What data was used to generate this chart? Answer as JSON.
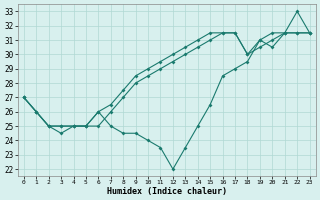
{
  "line1_x": [
    0,
    1,
    2,
    3,
    4,
    5,
    6,
    7,
    8,
    9,
    10,
    11,
    12,
    13,
    14,
    15,
    16,
    17,
    18,
    19,
    20,
    21,
    22,
    23
  ],
  "line1_y": [
    27.0,
    26.0,
    25.0,
    25.0,
    25.0,
    25.0,
    26.0,
    26.5,
    27.5,
    28.5,
    29.0,
    29.5,
    30.0,
    30.5,
    31.0,
    31.5,
    31.5,
    31.5,
    30.0,
    31.0,
    31.5,
    31.5,
    31.5,
    31.5
  ],
  "line2_x": [
    0,
    1,
    2,
    3,
    4,
    5,
    6,
    7,
    8,
    9,
    10,
    11,
    12,
    13,
    14,
    15,
    16,
    17,
    18,
    19,
    20,
    21,
    22,
    23
  ],
  "line2_y": [
    27.0,
    26.0,
    25.0,
    25.0,
    25.0,
    25.0,
    25.0,
    26.0,
    27.0,
    28.0,
    28.5,
    29.0,
    29.5,
    30.0,
    30.5,
    31.0,
    31.5,
    31.5,
    30.0,
    30.5,
    31.0,
    31.5,
    31.5,
    31.5
  ],
  "line3_x": [
    0,
    1,
    2,
    3,
    4,
    5,
    6,
    7,
    8,
    9,
    10,
    11,
    12,
    13,
    14,
    15,
    16,
    17,
    18,
    19,
    20,
    21,
    22,
    23
  ],
  "line3_y": [
    27.0,
    26.0,
    25.0,
    24.5,
    25.0,
    25.0,
    26.0,
    25.0,
    24.5,
    24.5,
    24.0,
    23.5,
    22.0,
    23.5,
    25.0,
    26.5,
    28.5,
    29.0,
    29.5,
    31.0,
    30.5,
    31.5,
    33.0,
    31.5
  ],
  "line_color": "#1a7a6e",
  "bg_color": "#d8f0ee",
  "grid_color": "#b0d8d4",
  "xlabel": "Humidex (Indice chaleur)",
  "ylabel_ticks": [
    22,
    23,
    24,
    25,
    26,
    27,
    28,
    29,
    30,
    31,
    32,
    33
  ],
  "xticks": [
    0,
    1,
    2,
    3,
    4,
    5,
    6,
    7,
    8,
    9,
    10,
    11,
    12,
    13,
    14,
    15,
    16,
    17,
    18,
    19,
    20,
    21,
    22,
    23
  ],
  "ylim": [
    21.5,
    33.5
  ],
  "xlim": [
    -0.5,
    23.5
  ]
}
